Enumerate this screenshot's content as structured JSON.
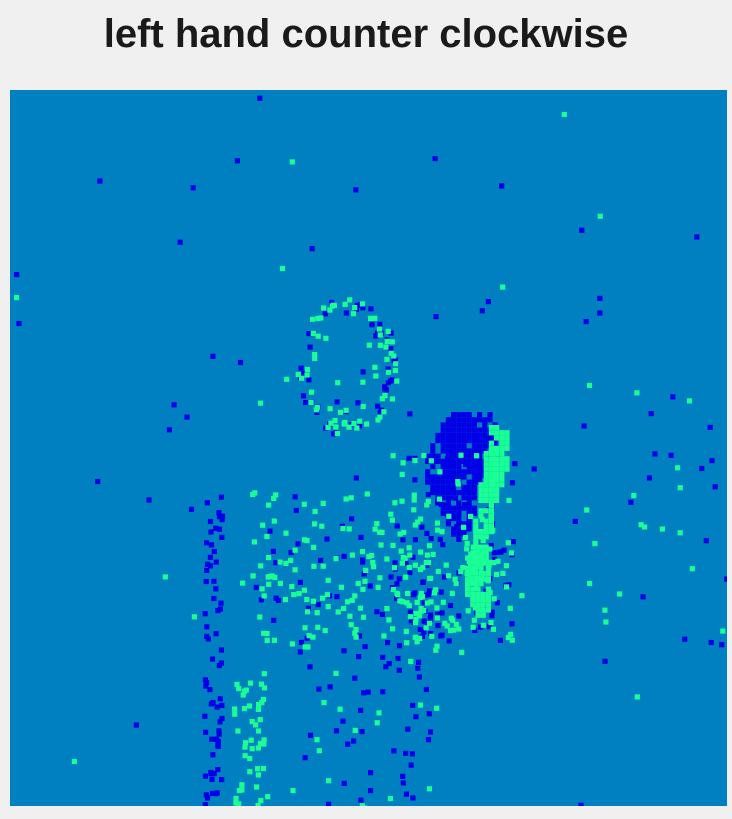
{
  "figure": {
    "title": "left hand counter clockwise"
  },
  "colors": {
    "background": "#0080c0",
    "negative_event": "#0000e6",
    "positive_event": "#19ff96",
    "figure_bg": "#f0f0f0"
  }
}
